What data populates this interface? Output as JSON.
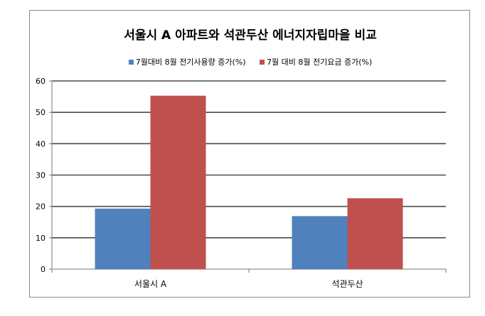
{
  "chart_data": {
    "type": "bar",
    "title": "서울시 A 아파트와 석관두산 에너지자립마을 비교",
    "categories": [
      "서울시 A",
      "석관두산"
    ],
    "series": [
      {
        "name": "7월대비 8월 전기사용량 증가(%)",
        "values": [
          19.3,
          16.9
        ],
        "color": "#4f81bd"
      },
      {
        "name": "7월 대비 8월 전기요금 증가(%)",
        "values": [
          55.3,
          22.6
        ],
        "color": "#c0504d"
      }
    ],
    "ylim": [
      0,
      60
    ],
    "yticks": [
      0,
      10,
      20,
      30,
      40,
      50,
      60
    ],
    "grid": true,
    "legend_position": "top"
  }
}
